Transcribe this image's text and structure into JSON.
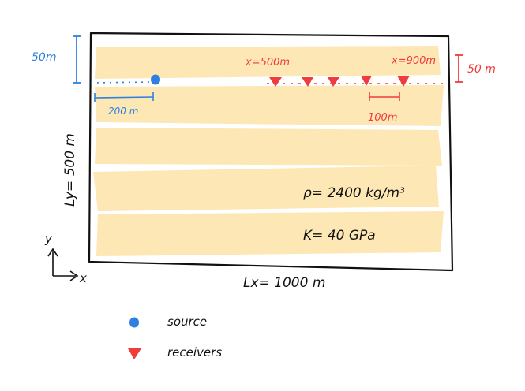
{
  "labels": {
    "source_depth": "50m",
    "source_offset": "200 m",
    "receiver_depth": "50 m",
    "receiver_first": "x=500m",
    "receiver_last": "x=900m",
    "receiver_spacing": "100m",
    "ly": "Ly= 500 m",
    "lx": "Lx= 1000 m",
    "rho": "ρ= 2400 kg/m³",
    "k": "K= 40 GPa",
    "axis_y": "y",
    "axis_x": "x"
  },
  "legend": {
    "source": "source",
    "receivers": "receivers"
  },
  "colors": {
    "blue": "#2f7fe0",
    "red": "#f03c3c",
    "fill": "#fde3a7",
    "ink": "#111111"
  },
  "receivers_x_m": [
    500,
    600,
    700,
    800,
    900
  ],
  "source_x_m": 200
}
